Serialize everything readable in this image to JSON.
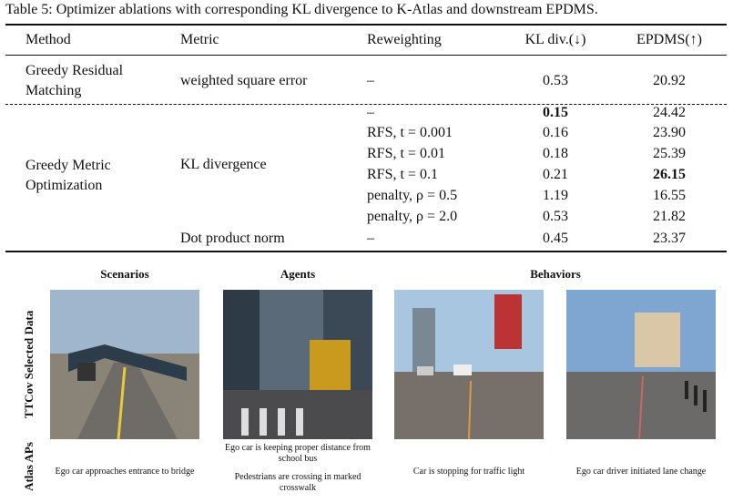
{
  "caption": "Table 5: Optimizer ablations with corresponding KL divergence to K-Atlas and downstream EPDMS.",
  "table": {
    "header": [
      "Method",
      "Metric",
      "Reweighting",
      "KL div.(↓)",
      "EPDMS(↑)"
    ],
    "methods": [
      "Greedy Residual Matching",
      "Greedy Metric Optimization"
    ],
    "metrics": [
      "weighted square error",
      "KL divergence",
      "Dot product norm"
    ],
    "rows": [
      [
        "–",
        "0.53",
        "20.92"
      ],
      [
        "–",
        "0.15",
        "24.42"
      ],
      [
        "RFS, t = 0.001",
        "0.16",
        "23.90"
      ],
      [
        "RFS, t = 0.01",
        "0.18",
        "25.39"
      ],
      [
        "RFS, t = 0.1",
        "0.21",
        "26.15"
      ],
      [
        "penalty, ρ = 0.5",
        "1.19",
        "16.55"
      ],
      [
        "penalty, ρ = 2.0",
        "0.53",
        "21.82"
      ],
      [
        "–",
        "0.45",
        "23.37"
      ]
    ]
  },
  "figure": {
    "columns": [
      "Scenarios",
      "Agents",
      "Behaviors"
    ],
    "row_labels": [
      "TTCov Selected Data",
      "Atlas APs"
    ],
    "captions": [
      [
        "Ego car approaches entrance to bridge"
      ],
      [
        "Ego car is keeping proper distance from school bus",
        "Pedestrians are crossing in marked crosswalk"
      ],
      [
        "Car is stopping for traffic light"
      ],
      [
        "Ego car driver initiated lane change"
      ]
    ]
  }
}
